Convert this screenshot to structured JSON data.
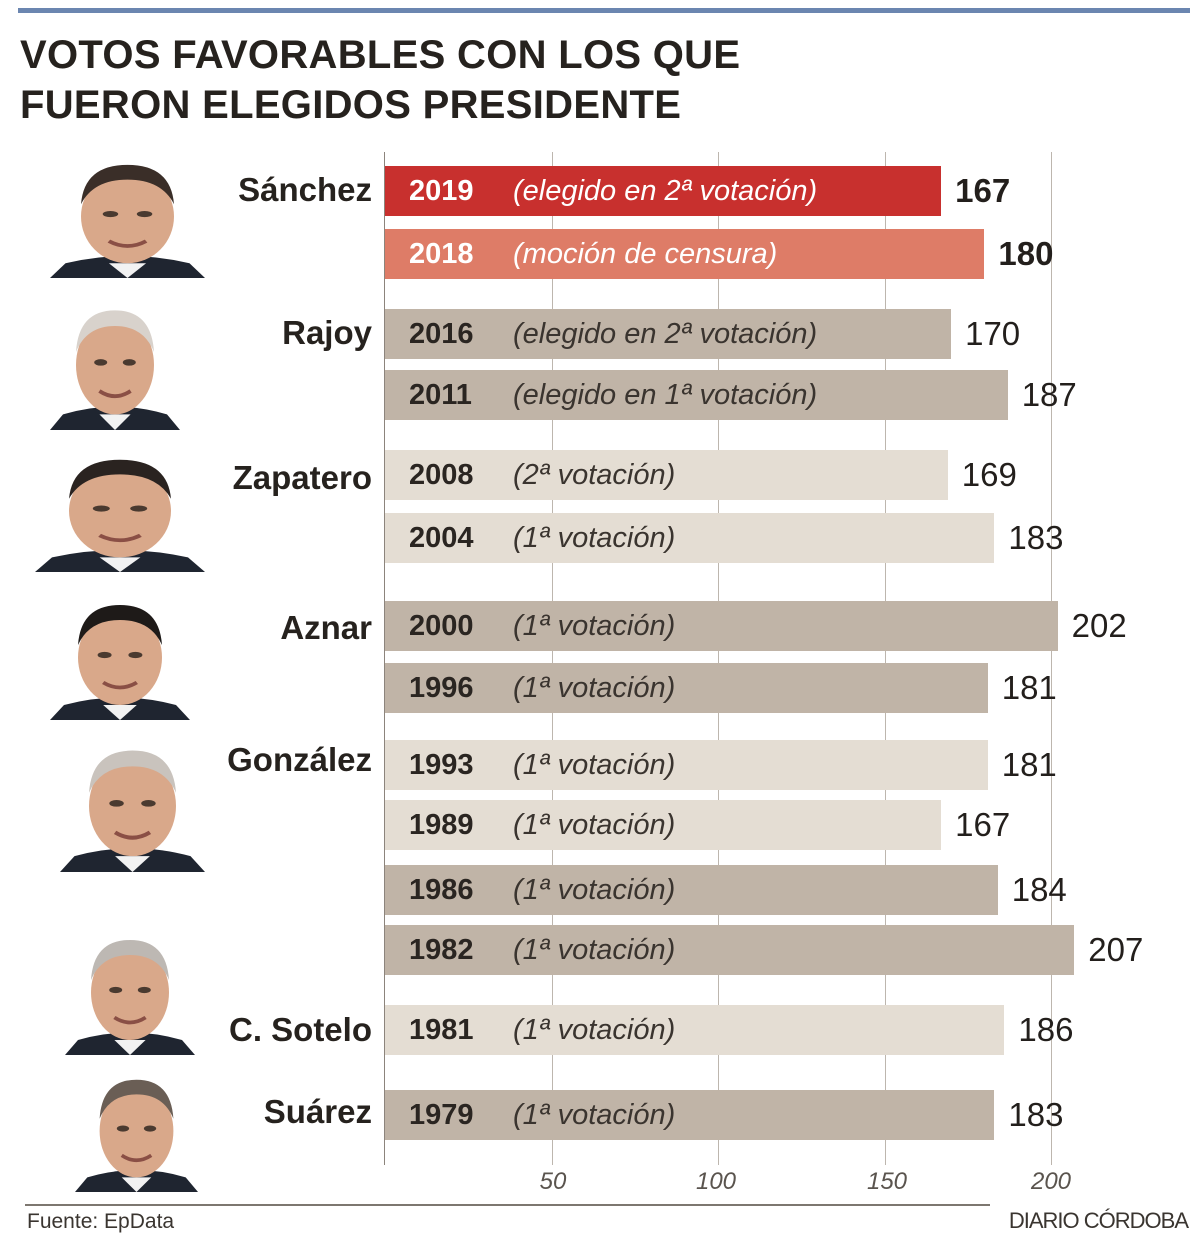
{
  "title_lines": [
    "VOTOS FAVORABLES CON LOS QUE",
    "FUERON ELEGIDOS PRESIDENTE"
  ],
  "source": "Fuente: EpData",
  "brand": "DIARIO CÓRDOBA",
  "colors": {
    "red": "#c8302e",
    "salmon": "#de7c67",
    "dark": "#c0b4a7",
    "light": "#e4ddd3"
  },
  "chart_data": {
    "type": "bar",
    "orientation": "horizontal",
    "title": "VOTOS FAVORABLES CON LOS QUE FUERON ELEGIDOS PRESIDENTE",
    "xlim": [
      0,
      210
    ],
    "xticks": [
      "50",
      "100",
      "150",
      "200"
    ],
    "grid": true,
    "presidents": [
      {
        "name": "Sánchez",
        "rows": [
          0,
          1
        ]
      },
      {
        "name": "Rajoy",
        "rows": [
          2,
          3
        ]
      },
      {
        "name": "Zapatero",
        "rows": [
          4,
          5
        ]
      },
      {
        "name": "Aznar",
        "rows": [
          6,
          7
        ]
      },
      {
        "name": "González",
        "rows": [
          8,
          9,
          10,
          11
        ]
      },
      {
        "name": "C. Sotelo",
        "rows": [
          12
        ]
      },
      {
        "name": "Suárez",
        "rows": [
          13
        ]
      }
    ],
    "rows": [
      {
        "year": "2019",
        "note": "(elegido en 2ª votación)",
        "value": 167,
        "color": "red"
      },
      {
        "year": "2018",
        "note": "(moción de censura)",
        "value": 180,
        "color": "salmon"
      },
      {
        "year": "2016",
        "note": "(elegido en 2ª votación)",
        "value": 170,
        "color": "dark"
      },
      {
        "year": "2011",
        "note": "(elegido en 1ª votación)",
        "value": 187,
        "color": "dark"
      },
      {
        "year": "2008",
        "note": "(2ª votación)",
        "value": 169,
        "color": "light"
      },
      {
        "year": "2004",
        "note": "(1ª votación)",
        "value": 183,
        "color": "light"
      },
      {
        "year": "2000",
        "note": "(1ª votación)",
        "value": 202,
        "color": "dark"
      },
      {
        "year": "1996",
        "note": "(1ª votación)",
        "value": 181,
        "color": "dark"
      },
      {
        "year": "1993",
        "note": "(1ª votación)",
        "value": 181,
        "color": "light"
      },
      {
        "year": "1989",
        "note": "(1ª votación)",
        "value": 167,
        "color": "light"
      },
      {
        "year": "1986",
        "note": "(1ª votación)",
        "value": 184,
        "color": "dark"
      },
      {
        "year": "1982",
        "note": "(1ª votación)",
        "value": 207,
        "color": "dark"
      },
      {
        "year": "1981",
        "note": "(1ª votación)",
        "value": 186,
        "color": "light"
      },
      {
        "year": "1979",
        "note": "(1ª votación)",
        "value": 183,
        "color": "dark"
      }
    ]
  }
}
